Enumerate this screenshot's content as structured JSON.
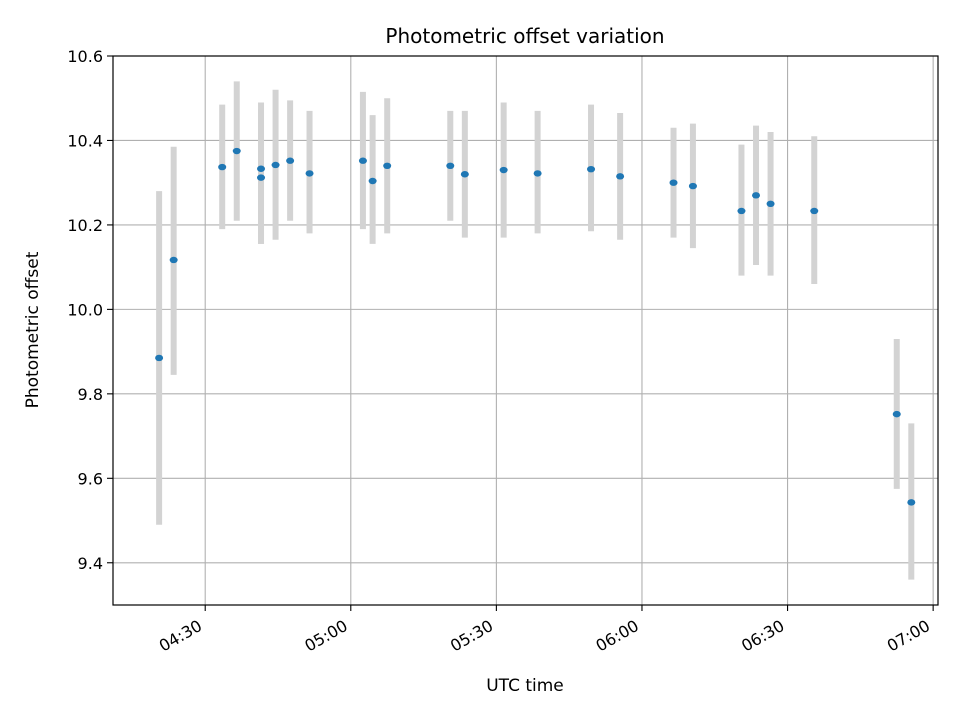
{
  "chart_data": {
    "type": "scatter",
    "title": "Photometric offset variation",
    "xlabel": "UTC time",
    "ylabel": "Photometric offset",
    "x_axis_kind": "time",
    "xlim": [
      "04:11",
      "07:01"
    ],
    "ylim": [
      9.3,
      10.6
    ],
    "x_ticks": [
      "04:30",
      "05:00",
      "05:30",
      "06:00",
      "06:30",
      "07:00"
    ],
    "y_ticks": [
      9.4,
      9.6,
      9.8,
      10.0,
      10.2,
      10.4,
      10.6
    ],
    "grid": true,
    "legend": "none",
    "point_color": "#1f77b4",
    "errorbar_color": "#d3d3d3",
    "points": [
      {
        "t": "04:20:30",
        "y": 9.885,
        "lo": 9.49,
        "hi": 10.28
      },
      {
        "t": "04:23:30",
        "y": 10.117,
        "lo": 9.845,
        "hi": 10.385
      },
      {
        "t": "04:33:30",
        "y": 10.337,
        "lo": 10.19,
        "hi": 10.485
      },
      {
        "t": "04:36:30",
        "y": 10.375,
        "lo": 10.21,
        "hi": 10.54
      },
      {
        "t": "04:41:30",
        "y": 10.333,
        "lo": 10.155,
        "hi": 10.49
      },
      {
        "t": "04:41:30",
        "y": 10.312,
        "lo": 10.155,
        "hi": 10.475
      },
      {
        "t": "04:44:30",
        "y": 10.342,
        "lo": 10.165,
        "hi": 10.52
      },
      {
        "t": "04:47:30",
        "y": 10.352,
        "lo": 10.21,
        "hi": 10.495
      },
      {
        "t": "04:51:30",
        "y": 10.322,
        "lo": 10.18,
        "hi": 10.47
      },
      {
        "t": "05:02:30",
        "y": 10.352,
        "lo": 10.19,
        "hi": 10.515
      },
      {
        "t": "05:04:30",
        "y": 10.304,
        "lo": 10.155,
        "hi": 10.46
      },
      {
        "t": "05:07:30",
        "y": 10.34,
        "lo": 10.18,
        "hi": 10.5
      },
      {
        "t": "05:20:30",
        "y": 10.34,
        "lo": 10.21,
        "hi": 10.47
      },
      {
        "t": "05:23:30",
        "y": 10.32,
        "lo": 10.17,
        "hi": 10.47
      },
      {
        "t": "05:31:30",
        "y": 10.33,
        "lo": 10.17,
        "hi": 10.49
      },
      {
        "t": "05:38:30",
        "y": 10.322,
        "lo": 10.18,
        "hi": 10.47
      },
      {
        "t": "05:49:30",
        "y": 10.332,
        "lo": 10.185,
        "hi": 10.485
      },
      {
        "t": "05:55:30",
        "y": 10.315,
        "lo": 10.165,
        "hi": 10.465
      },
      {
        "t": "06:06:30",
        "y": 10.3,
        "lo": 10.17,
        "hi": 10.43
      },
      {
        "t": "06:10:30",
        "y": 10.292,
        "lo": 10.145,
        "hi": 10.44
      },
      {
        "t": "06:20:30",
        "y": 10.233,
        "lo": 10.08,
        "hi": 10.39
      },
      {
        "t": "06:23:30",
        "y": 10.27,
        "lo": 10.105,
        "hi": 10.435
      },
      {
        "t": "06:26:30",
        "y": 10.25,
        "lo": 10.08,
        "hi": 10.42
      },
      {
        "t": "06:35:30",
        "y": 10.233,
        "lo": 10.06,
        "hi": 10.41
      },
      {
        "t": "06:52:30",
        "y": 9.752,
        "lo": 9.575,
        "hi": 9.93
      },
      {
        "t": "06:55:30",
        "y": 9.543,
        "lo": 9.36,
        "hi": 9.73
      }
    ]
  }
}
